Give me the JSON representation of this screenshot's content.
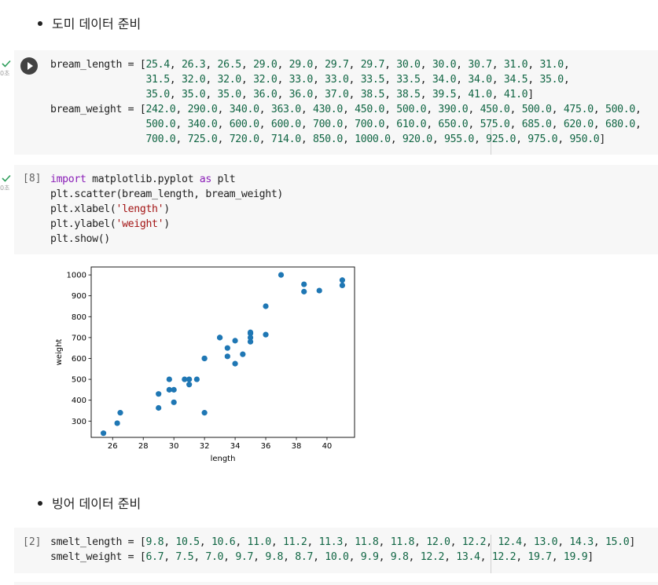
{
  "md1": "도미 데이터 준비",
  "md2": "빙어 데이터 준비",
  "cell1": {
    "time": "0초",
    "line1": "bream_length = [25.4, 26.3, 26.5, 29.0, 29.0, 29.7, 29.7, 30.0, 30.0, 30.7, 31.0, 31.0,",
    "line2": "                31.5, 32.0, 32.0, 32.0, 33.0, 33.0, 33.5, 33.5, 34.0, 34.0, 34.5, 35.0,",
    "line3": "                35.0, 35.0, 35.0, 36.0, 36.0, 37.0, 38.5, 38.5, 39.5, 41.0, 41.0]",
    "line4": "bream_weight = [242.0, 290.0, 340.0, 363.0, 430.0, 450.0, 500.0, 390.0, 450.0, 500.0, 475.0, 500.0,",
    "line5": "                500.0, 340.0, 600.0, 600.0, 700.0, 700.0, 610.0, 650.0, 575.0, 685.0, 620.0, 680.0,",
    "line6": "                700.0, 725.0, 720.0, 714.0, 850.0, 1000.0, 920.0, 955.0, 925.0, 975.0, 950.0]"
  },
  "cell2": {
    "exec": "[8]",
    "time": "0초",
    "line1_kw1": "import",
    "line1_mid": " matplotlib.pyplot ",
    "line1_kw2": "as",
    "line1_end": " plt",
    "line2": "plt.scatter(bream_length, bream_weight)",
    "line3_pre": "plt.xlabel(",
    "line3_str": "'length'",
    "line3_post": ")",
    "line4_pre": "plt.ylabel(",
    "line4_str": "'weight'",
    "line4_post": ")",
    "line5": "plt.show()"
  },
  "cell3": {
    "exec": "[2]",
    "line1": "smelt_length = [9.8, 10.5, 10.6, 11.0, 11.2, 11.3, 11.8, 11.8, 12.0, 12.2, 12.4, 13.0, 14.3, 15.0]",
    "line2": "smelt_weight = [6.7, 7.5, 7.0, 9.7, 9.8, 8.7, 10.0, 9.9, 9.8, 12.2, 13.4, 12.2, 19.7, 19.9]"
  },
  "chart_data": {
    "type": "scatter",
    "xlabel": "length",
    "ylabel": "weight",
    "xlim": [
      24.6,
      41.8
    ],
    "ylim": [
      222,
      1038
    ],
    "xticks": [
      26,
      28,
      30,
      32,
      34,
      36,
      38,
      40
    ],
    "yticks": [
      300,
      400,
      500,
      600,
      700,
      800,
      900,
      1000
    ],
    "color": "#1f77b4",
    "x": [
      25.4,
      26.3,
      26.5,
      29.0,
      29.0,
      29.7,
      29.7,
      30.0,
      30.0,
      30.7,
      31.0,
      31.0,
      31.5,
      32.0,
      32.0,
      32.0,
      33.0,
      33.0,
      33.5,
      33.5,
      34.0,
      34.0,
      34.5,
      35.0,
      35.0,
      35.0,
      35.0,
      36.0,
      36.0,
      37.0,
      38.5,
      38.5,
      39.5,
      41.0,
      41.0
    ],
    "y": [
      242.0,
      290.0,
      340.0,
      363.0,
      430.0,
      450.0,
      500.0,
      390.0,
      450.0,
      500.0,
      475.0,
      500.0,
      500.0,
      340.0,
      600.0,
      600.0,
      700.0,
      700.0,
      610.0,
      650.0,
      575.0,
      685.0,
      620.0,
      680.0,
      700.0,
      725.0,
      720.0,
      714.0,
      850.0,
      1000.0,
      920.0,
      955.0,
      925.0,
      975.0,
      950.0
    ]
  }
}
